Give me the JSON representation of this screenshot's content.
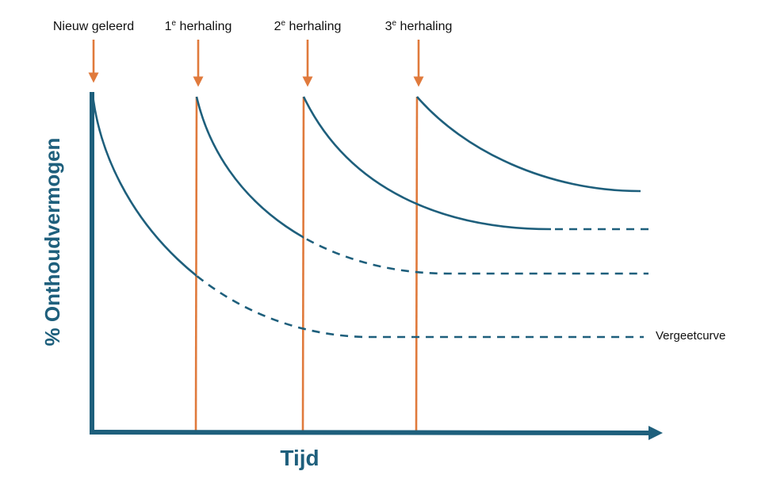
{
  "markers": [
    {
      "text": "Nieuw geleerd"
    },
    {
      "number": "1",
      "sup": "e",
      "text": " herhaling"
    },
    {
      "number": "2",
      "sup": "e",
      "text": " herhaling"
    },
    {
      "number": "3",
      "sup": "e",
      "text": " herhaling"
    }
  ],
  "y_axis_label": "% Onthoudvermogen",
  "x_axis_label": "Tijd",
  "curve_label": "Vergeetcurve"
}
